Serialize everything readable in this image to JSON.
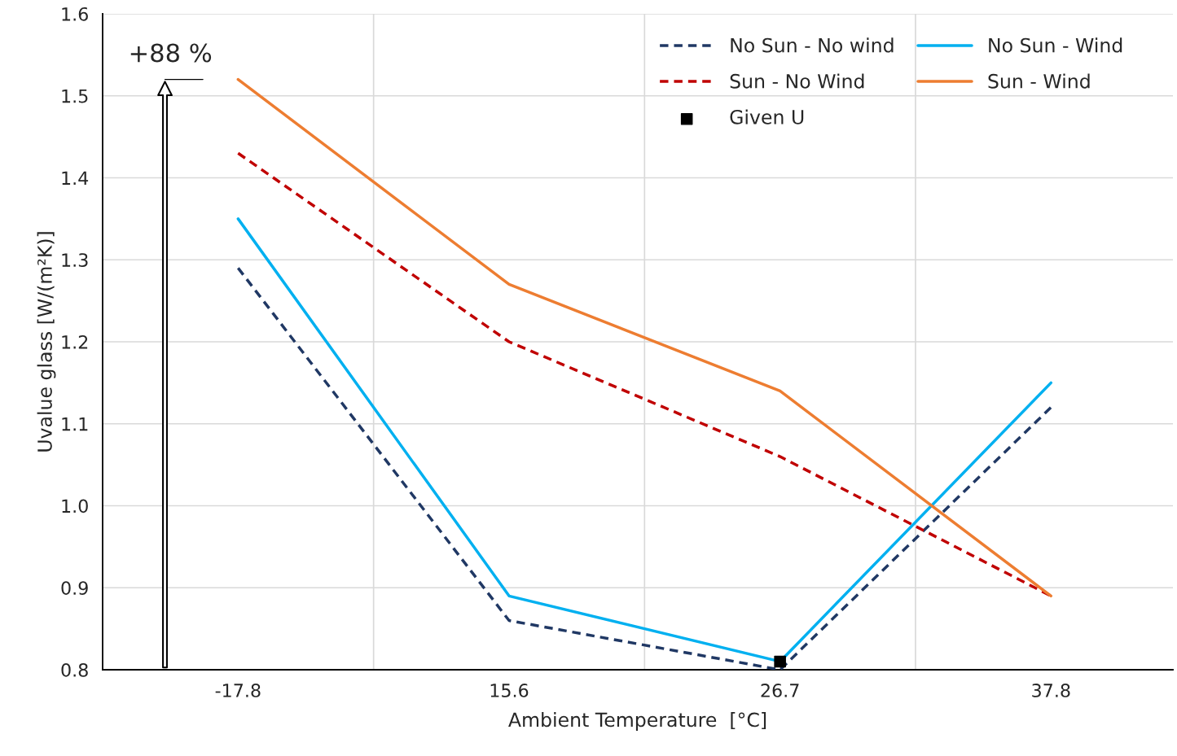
{
  "chart_data": {
    "type": "line",
    "xlabel": "Ambient Temperature  [°C]",
    "ylabel": "Uvalue glass [W/(m²K)]",
    "categories": [
      "-17.8",
      "15.6",
      "26.7",
      "37.8"
    ],
    "series": [
      {
        "name": "No Sun - No wind",
        "color": "#203864",
        "line_style": "dashed",
        "values": [
          1.29,
          0.86,
          0.8,
          1.12
        ]
      },
      {
        "name": "Sun - No Wind",
        "color": "#c00000",
        "line_style": "dashed",
        "values": [
          1.43,
          1.2,
          1.06,
          0.89
        ]
      },
      {
        "name": "Given U",
        "type": "scatter",
        "marker": "square",
        "color": "#000000",
        "x": [
          "26.7"
        ],
        "values": [
          0.81
        ]
      },
      {
        "name": "No Sun - Wind",
        "color": "#00b0f0",
        "line_style": "solid",
        "values": [
          1.35,
          0.89,
          0.81,
          1.15
        ]
      },
      {
        "name": "Sun - Wind",
        "color": "#ed7d31",
        "line_style": "solid",
        "values": [
          1.52,
          1.27,
          1.14,
          0.89
        ]
      }
    ],
    "ylim": [
      0.8,
      1.6
    ],
    "yticks": [
      {
        "value": 0.8,
        "label": "0.8"
      },
      {
        "value": 0.9,
        "label": "0.9"
      },
      {
        "value": 1.0,
        "label": "1.0"
      },
      {
        "value": 1.1,
        "label": "1.1"
      },
      {
        "value": 1.2,
        "label": "1.2"
      },
      {
        "value": 1.3,
        "label": "1.3"
      },
      {
        "value": 1.4,
        "label": "1.4"
      },
      {
        "value": 1.5,
        "label": "1.5"
      },
      {
        "value": 1.6,
        "label": "1.6"
      }
    ],
    "grid": true,
    "legend": "top right",
    "annotations": [
      "+88 %"
    ]
  }
}
